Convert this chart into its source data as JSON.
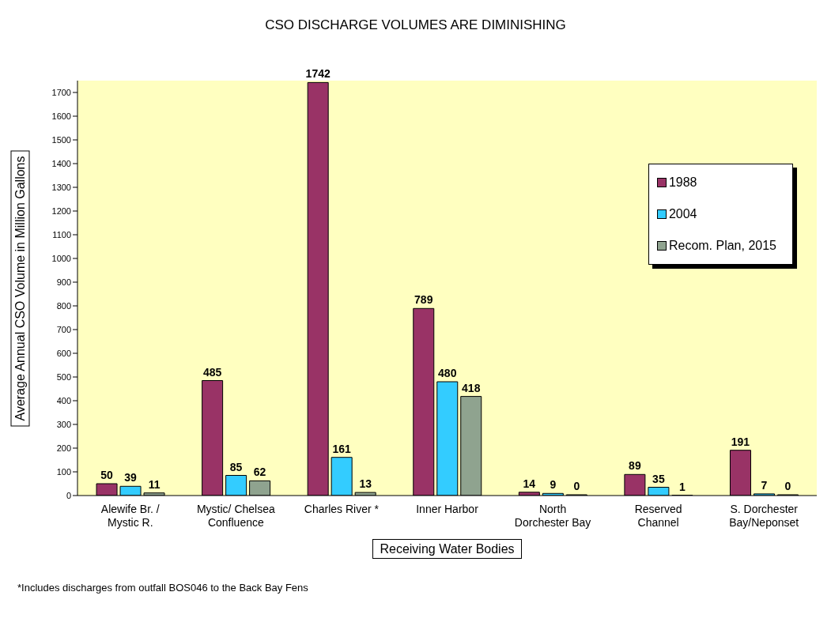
{
  "chart_data": {
    "type": "bar",
    "title": "CSO DISCHARGE VOLUMES ARE DIMINISHING",
    "xlabel": "Receiving Water Bodies",
    "ylabel": "Average Annual CSO Volume in  Million Gallons",
    "categories": [
      "Alewife Br. / Mystic R.",
      "Mystic/ Chelsea Confluence",
      "Charles River *",
      "Inner Harbor",
      "North Dorchester Bay",
      "Reserved Channel",
      "S. Dorchester Bay/Neponset"
    ],
    "series": [
      {
        "name": "1988",
        "color": "#993366",
        "values": [
          50,
          485,
          1742,
          789,
          14,
          89,
          191
        ]
      },
      {
        "name": "2004",
        "color": "#33ccff",
        "values": [
          39,
          85,
          161,
          480,
          9,
          35,
          7
        ]
      },
      {
        "name": "Recom. Plan, 2015",
        "color": "#8fa38f",
        "values": [
          11,
          62,
          13,
          418,
          0,
          1,
          0
        ]
      }
    ],
    "ylim": [
      0,
      1750
    ],
    "yticks": [
      0,
      100,
      200,
      300,
      400,
      500,
      600,
      700,
      800,
      900,
      1000,
      1100,
      1200,
      1300,
      1400,
      1500,
      1600,
      1700
    ],
    "data_labels": true,
    "grid": false,
    "legend": "top right",
    "annotations": [
      "*Includes discharges from outfall BOS046 to the Back Bay Fens"
    ]
  }
}
